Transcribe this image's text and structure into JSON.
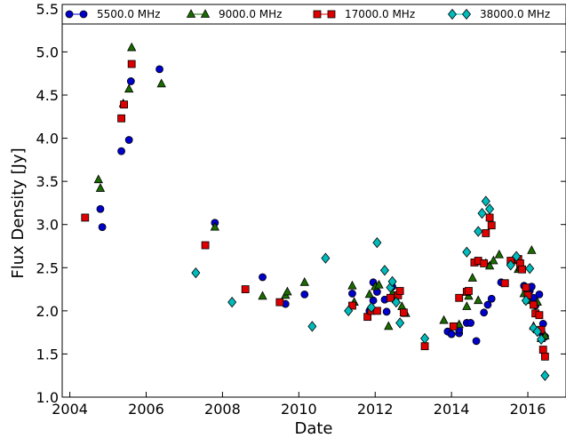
{
  "chart_data": {
    "type": "scatter",
    "xlabel": "Date",
    "ylabel": "Flux Density [Jy]",
    "xlim": [
      2003.8,
      2017.0
    ],
    "ylim": [
      1.0,
      5.55
    ],
    "x_ticks": [
      2004,
      2006,
      2008,
      2010,
      2012,
      2014,
      2016
    ],
    "x_tick_labels": [
      "2004",
      "2006",
      "2008",
      "2010",
      "2012",
      "2014",
      "2016"
    ],
    "y_ticks": [
      1.0,
      1.5,
      2.0,
      2.5,
      3.0,
      3.5,
      4.0,
      4.5,
      5.0,
      5.5
    ],
    "y_tick_labels": [
      "1.0",
      "1.5",
      "2.0",
      "2.5",
      "3.0",
      "3.5",
      "4.0",
      "4.5",
      "5.0",
      "5.5"
    ],
    "grid": false,
    "legend_position": "top",
    "series": [
      {
        "name": "5500.0 MHz",
        "marker": "circle",
        "color": "#0000cc",
        "points": [
          [
            2004.8,
            3.18
          ],
          [
            2004.85,
            2.97
          ],
          [
            2005.35,
            3.85
          ],
          [
            2005.55,
            3.98
          ],
          [
            2005.6,
            4.66
          ],
          [
            2006.35,
            4.8
          ],
          [
            2007.8,
            3.02
          ],
          [
            2009.05,
            2.39
          ],
          [
            2009.65,
            2.08
          ],
          [
            2010.15,
            2.19
          ],
          [
            2011.4,
            2.2
          ],
          [
            2011.85,
            2.0
          ],
          [
            2011.95,
            2.12
          ],
          [
            2011.95,
            2.33
          ],
          [
            2012.05,
            2.22
          ],
          [
            2012.25,
            2.13
          ],
          [
            2012.3,
            1.99
          ],
          [
            2012.45,
            2.28
          ],
          [
            2012.5,
            2.16
          ],
          [
            2013.9,
            1.76
          ],
          [
            2014.0,
            1.73
          ],
          [
            2014.2,
            1.74
          ],
          [
            2014.2,
            1.78
          ],
          [
            2014.4,
            1.86
          ],
          [
            2014.5,
            1.86
          ],
          [
            2014.65,
            1.65
          ],
          [
            2014.85,
            1.98
          ],
          [
            2014.95,
            2.07
          ],
          [
            2015.05,
            2.14
          ],
          [
            2015.3,
            2.33
          ],
          [
            2015.9,
            2.29
          ],
          [
            2016.05,
            2.23
          ],
          [
            2016.1,
            2.28
          ],
          [
            2016.15,
            2.15
          ],
          [
            2016.2,
            2.06
          ],
          [
            2016.3,
            2.19
          ],
          [
            2016.35,
            1.75
          ],
          [
            2016.4,
            1.85
          ],
          [
            2016.45,
            1.7
          ]
        ]
      },
      {
        "name": "9000.0 MHz",
        "marker": "triangle",
        "color": "#1a6b00",
        "points": [
          [
            2004.75,
            3.52
          ],
          [
            2004.8,
            3.42
          ],
          [
            2005.4,
            4.4
          ],
          [
            2005.55,
            4.57
          ],
          [
            2005.62,
            5.05
          ],
          [
            2006.4,
            4.63
          ],
          [
            2007.8,
            2.97
          ],
          [
            2009.05,
            2.17
          ],
          [
            2009.65,
            2.18
          ],
          [
            2009.7,
            2.22
          ],
          [
            2010.15,
            2.33
          ],
          [
            2011.4,
            2.29
          ],
          [
            2011.45,
            2.1
          ],
          [
            2011.85,
            2.19
          ],
          [
            2012.0,
            2.28
          ],
          [
            2012.1,
            2.3
          ],
          [
            2012.35,
            1.82
          ],
          [
            2012.45,
            2.2
          ],
          [
            2012.55,
            2.13
          ],
          [
            2012.7,
            2.05
          ],
          [
            2012.8,
            1.97
          ],
          [
            2013.8,
            1.89
          ],
          [
            2014.2,
            1.84
          ],
          [
            2014.4,
            2.05
          ],
          [
            2014.45,
            2.17
          ],
          [
            2014.55,
            2.38
          ],
          [
            2014.65,
            2.57
          ],
          [
            2014.7,
            2.12
          ],
          [
            2014.9,
            2.55
          ],
          [
            2015.0,
            2.52
          ],
          [
            2015.1,
            2.58
          ],
          [
            2015.25,
            2.65
          ],
          [
            2015.6,
            2.58
          ],
          [
            2015.75,
            2.48
          ],
          [
            2015.8,
            2.5
          ],
          [
            2015.9,
            2.2
          ],
          [
            2016.0,
            2.12
          ],
          [
            2016.1,
            2.7
          ],
          [
            2016.15,
            1.82
          ],
          [
            2016.25,
            2.1
          ],
          [
            2016.35,
            1.68
          ],
          [
            2016.45,
            1.71
          ]
        ]
      },
      {
        "name": "17000.0 MHz",
        "marker": "square",
        "color": "#dd0000",
        "points": [
          [
            2004.4,
            3.08
          ],
          [
            2005.35,
            4.23
          ],
          [
            2005.42,
            4.39
          ],
          [
            2005.62,
            4.86
          ],
          [
            2007.55,
            2.76
          ],
          [
            2008.6,
            2.25
          ],
          [
            2009.5,
            2.1
          ],
          [
            2011.4,
            2.06
          ],
          [
            2011.8,
            1.93
          ],
          [
            2011.9,
            2.0
          ],
          [
            2012.05,
            2.0
          ],
          [
            2012.4,
            2.15
          ],
          [
            2012.6,
            2.18
          ],
          [
            2012.65,
            2.23
          ],
          [
            2012.75,
            1.98
          ],
          [
            2013.3,
            1.59
          ],
          [
            2014.05,
            1.82
          ],
          [
            2014.2,
            2.15
          ],
          [
            2014.4,
            2.22
          ],
          [
            2014.45,
            2.23
          ],
          [
            2014.6,
            2.56
          ],
          [
            2014.7,
            2.58
          ],
          [
            2014.85,
            2.55
          ],
          [
            2014.9,
            2.9
          ],
          [
            2015.0,
            3.08
          ],
          [
            2015.05,
            2.99
          ],
          [
            2015.4,
            2.32
          ],
          [
            2015.55,
            2.58
          ],
          [
            2015.75,
            2.6
          ],
          [
            2015.8,
            2.55
          ],
          [
            2015.85,
            2.48
          ],
          [
            2015.95,
            2.27
          ],
          [
            2016.0,
            2.18
          ],
          [
            2016.15,
            2.07
          ],
          [
            2016.2,
            1.97
          ],
          [
            2016.3,
            1.95
          ],
          [
            2016.35,
            1.78
          ],
          [
            2016.4,
            1.55
          ],
          [
            2016.45,
            1.47
          ]
        ]
      },
      {
        "name": "38000.0 MHz",
        "marker": "diamond",
        "color": "#00bbbb",
        "points": [
          [
            2007.3,
            2.44
          ],
          [
            2008.25,
            2.1
          ],
          [
            2010.35,
            1.82
          ],
          [
            2010.7,
            2.61
          ],
          [
            2011.3,
            2.0
          ],
          [
            2011.9,
            2.04
          ],
          [
            2012.05,
            2.79
          ],
          [
            2012.25,
            2.47
          ],
          [
            2012.4,
            2.27
          ],
          [
            2012.45,
            2.34
          ],
          [
            2012.55,
            2.1
          ],
          [
            2012.65,
            1.86
          ],
          [
            2013.3,
            1.68
          ],
          [
            2014.4,
            2.68
          ],
          [
            2014.7,
            2.92
          ],
          [
            2014.8,
            3.13
          ],
          [
            2014.9,
            3.27
          ],
          [
            2015.0,
            3.18
          ],
          [
            2015.55,
            2.53
          ],
          [
            2015.7,
            2.63
          ],
          [
            2015.95,
            2.12
          ],
          [
            2016.05,
            2.49
          ],
          [
            2016.15,
            1.8
          ],
          [
            2016.25,
            1.76
          ],
          [
            2016.35,
            1.67
          ],
          [
            2016.45,
            1.25
          ]
        ]
      }
    ]
  }
}
